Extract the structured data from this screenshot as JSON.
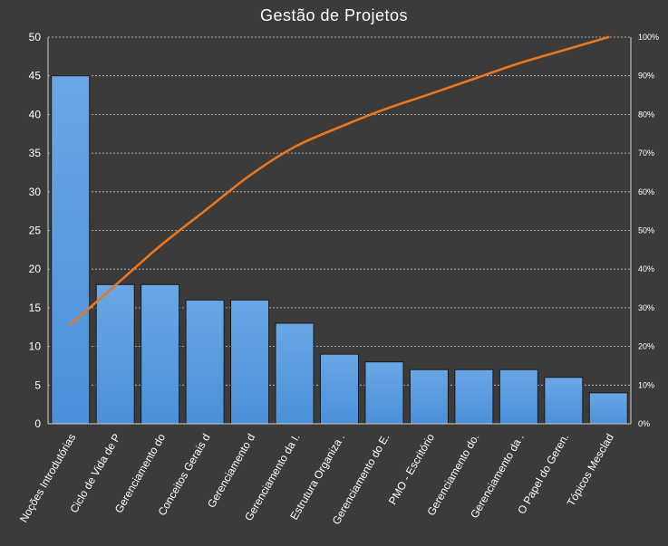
{
  "chart_data": {
    "type": "bar",
    "title": "Gestão de Projetos",
    "categories": [
      "Noções Introdutórias",
      "Ciclo de Vida de P",
      "Gerenciamento do",
      "Conceitos Gerais d",
      "Gerenciamento d",
      "Gerenciamento da I.",
      "Estrutura Organiza .",
      "Gerenciamento do E.",
      "PMO - Escritório",
      "Gerenciamento do.",
      "Gerenciamento da .",
      "O Papel do Geren.",
      "Tópicos Mesclad"
    ],
    "values": [
      45,
      18,
      18,
      16,
      16,
      13,
      9,
      8,
      7,
      7,
      7,
      6,
      4
    ],
    "cumulative_percent": [
      25.6,
      35.8,
      46.0,
      55.1,
      64.2,
      71.6,
      76.7,
      81.3,
      85.2,
      89.2,
      93.2,
      96.6,
      100
    ],
    "ylim": [
      0,
      50
    ],
    "yticks": [
      "0",
      "5",
      "10",
      "15",
      "20",
      "25",
      "30",
      "35",
      "40",
      "45",
      "50"
    ],
    "y2lim": [
      0,
      100
    ],
    "y2ticks": [
      "0%",
      "10%",
      "20%",
      "30%",
      "40%",
      "50%",
      "60%",
      "70%",
      "80%",
      "90%",
      "100%"
    ],
    "grid": true,
    "colors": {
      "background": "#3c3b39",
      "bar": "#4a90d9",
      "bar_top": "#6aa7e6",
      "line": "#e87722",
      "grid": "#c8c8c8"
    }
  }
}
